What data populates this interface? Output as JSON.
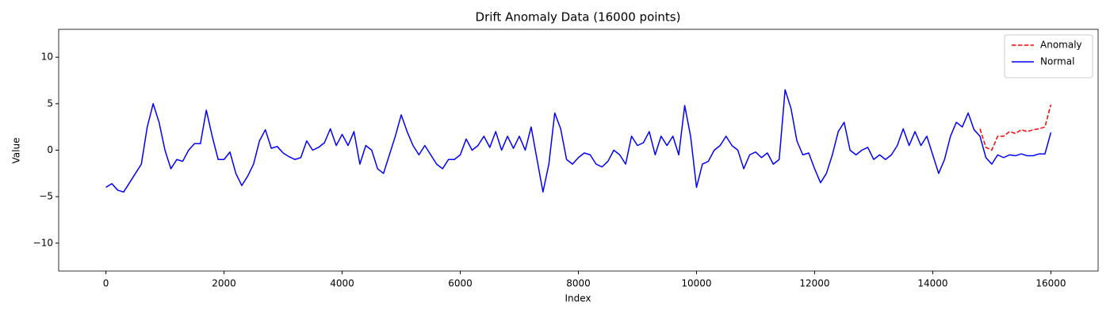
{
  "chart_data": {
    "type": "line",
    "title": "Drift Anomaly Data (16000 points)",
    "x_label": "Index",
    "y_label": "Value",
    "x": [
      0,
      100,
      200,
      300,
      400,
      500,
      600,
      700,
      800,
      900,
      1000,
      1100,
      1200,
      1300,
      1400,
      1500,
      1600,
      1700,
      1800,
      1900,
      2000,
      2100,
      2200,
      2300,
      2400,
      2500,
      2600,
      2700,
      2800,
      2900,
      3000,
      3100,
      3200,
      3300,
      3400,
      3500,
      3600,
      3700,
      3800,
      3900,
      4000,
      4100,
      4200,
      4300,
      4400,
      4500,
      4600,
      4700,
      4800,
      4900,
      5000,
      5100,
      5200,
      5300,
      5400,
      5500,
      5600,
      5700,
      5800,
      5900,
      6000,
      6100,
      6200,
      6300,
      6400,
      6500,
      6600,
      6700,
      6800,
      6900,
      7000,
      7100,
      7200,
      7300,
      7400,
      7500,
      7600,
      7700,
      7800,
      7900,
      8000,
      8100,
      8200,
      8300,
      8400,
      8500,
      8600,
      8700,
      8800,
      8900,
      9000,
      9100,
      9200,
      9300,
      9400,
      9500,
      9600,
      9700,
      9800,
      9900,
      10000,
      10100,
      10200,
      10300,
      10400,
      10500,
      10600,
      10700,
      10800,
      10900,
      11000,
      11100,
      11200,
      11300,
      11400,
      11500,
      11600,
      11700,
      11800,
      11900,
      12000,
      12100,
      12200,
      12300,
      12400,
      12500,
      12600,
      12700,
      12800,
      12900,
      13000,
      13100,
      13200,
      13300,
      13400,
      13500,
      13600,
      13700,
      13800,
      13900,
      14000,
      14100,
      14200,
      14300,
      14400,
      14500,
      14600,
      14700,
      14800,
      14900,
      15000,
      15100,
      15200,
      15300,
      15400,
      15500,
      15600,
      15700,
      15800,
      15900,
      16000
    ],
    "series": [
      {
        "name": "Anomaly",
        "color": "#ff0000",
        "dash": true,
        "x": [
          14800,
          14900,
          15000,
          15100,
          15200,
          15300,
          15400,
          15500,
          15600,
          15700,
          15800,
          15900,
          16000
        ],
        "values": [
          2.3,
          0.3,
          0,
          1.5,
          1.5,
          2,
          1.8,
          2.2,
          2,
          2.2,
          2.3,
          2.5,
          4.9
        ]
      },
      {
        "name": "Normal",
        "color": "#0000ff",
        "dash": false,
        "values": [
          -4,
          -3.6,
          -4.3,
          -4.5,
          -3.5,
          -2.5,
          -1.5,
          2.5,
          5,
          3,
          0,
          -2,
          -1,
          -1.2,
          0,
          0.7,
          0.7,
          4.3,
          1.5,
          -1,
          -1,
          -0.2,
          -2.5,
          -3.8,
          -2.8,
          -1.5,
          1,
          2.2,
          0.2,
          0.4,
          -0.3,
          -0.7,
          -1,
          -0.8,
          1,
          0,
          0.3,
          0.8,
          2.3,
          0.5,
          1.7,
          0.5,
          2,
          -1.5,
          0.5,
          0,
          -2,
          -2.5,
          -0.5,
          1.5,
          3.8,
          2,
          0.5,
          -0.5,
          0.5,
          -0.5,
          -1.5,
          -2,
          -1,
          -1,
          -0.5,
          1.2,
          0,
          0.5,
          1.5,
          0.3,
          2,
          0,
          1.5,
          0.2,
          1.5,
          0,
          2.5,
          -1,
          -4.5,
          -1.5,
          4,
          2.3,
          -1,
          -1.5,
          -0.8,
          -0.3,
          -0.5,
          -1.5,
          -1.8,
          -1.2,
          0,
          -0.5,
          -1.5,
          1.5,
          0.5,
          0.8,
          2,
          -0.5,
          1.5,
          0.5,
          1.5,
          -0.5,
          4.8,
          1.5,
          -4,
          -1.5,
          -1.2,
          0,
          0.5,
          1.5,
          0.5,
          0,
          -2,
          -0.5,
          -0.2,
          -0.8,
          -0.3,
          -1.5,
          -1,
          6.5,
          4.5,
          1,
          -0.5,
          -0.3,
          -2,
          -3.5,
          -2.5,
          -0.5,
          2,
          3,
          0,
          -0.5,
          0,
          0.3,
          -1,
          -0.5,
          -1,
          -0.5,
          0.5,
          2.3,
          0.5,
          2,
          0.5,
          1.5,
          -0.5,
          -2.5,
          -1,
          1.5,
          3,
          2.5,
          4,
          2.2,
          1.5,
          -0.8,
          -1.5,
          -0.5,
          -0.8,
          -0.5,
          -0.6,
          -0.4,
          -0.6,
          -0.6,
          -0.4,
          -0.4,
          1.9
        ]
      }
    ],
    "xlim": [
      -800,
      16800
    ],
    "ylim": [
      -13,
      13
    ],
    "xticks": [
      0,
      2000,
      4000,
      6000,
      8000,
      10000,
      12000,
      14000,
      16000
    ],
    "yticks": [
      {
        "value": -10,
        "label": "−10"
      },
      {
        "value": -5,
        "label": "−5"
      },
      0,
      5,
      10
    ],
    "legend": "upper right",
    "grid": false
  }
}
